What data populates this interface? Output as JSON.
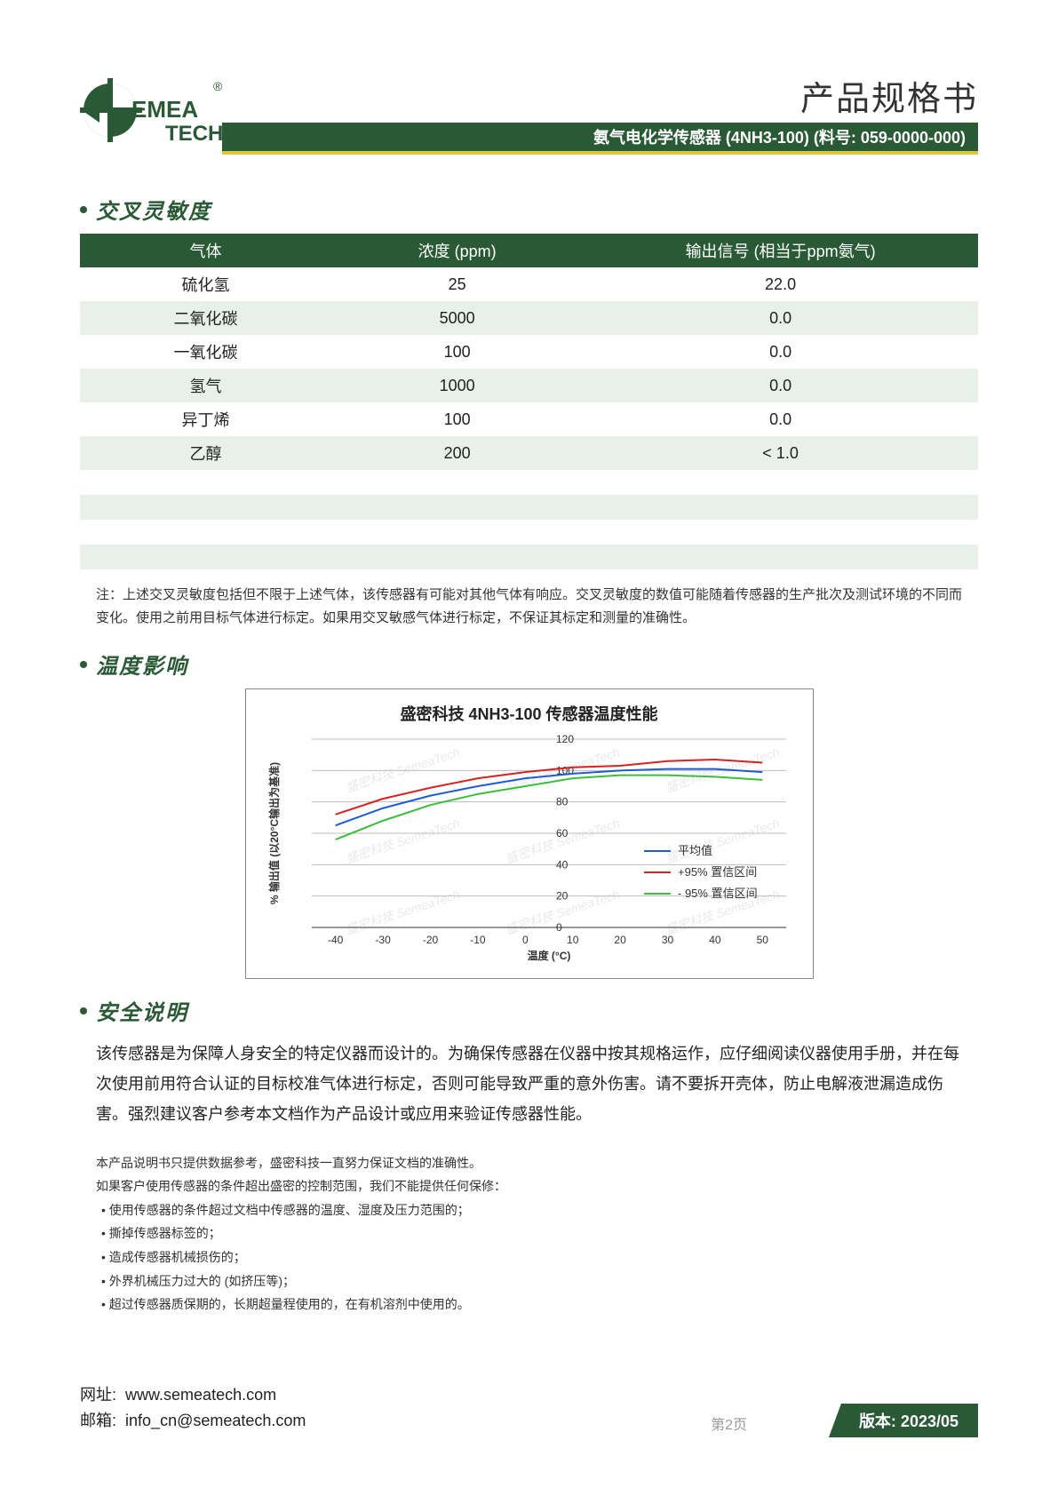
{
  "header": {
    "doc_title": "产品规格书",
    "banner": "氨气电化学传感器 (4NH3-100) (料号: 059-0000-000)",
    "logo_text_top": "EMEA",
    "logo_text_bottom": "TECH",
    "logo_reg": "®",
    "logo_color": "#2a5a35"
  },
  "sections": {
    "cross_sensitivity": {
      "title": "交叉灵敏度"
    },
    "temp_effect": {
      "title": "温度影响"
    },
    "safety": {
      "title": "安全说明"
    }
  },
  "xs_table": {
    "columns": [
      "气体",
      "浓度 (ppm)",
      "输出信号 (相当于ppm氨气)"
    ],
    "rows": [
      [
        "硫化氢",
        "25",
        "22.0"
      ],
      [
        "二氧化碳",
        "5000",
        "0.0"
      ],
      [
        "一氧化碳",
        "100",
        "0.0"
      ],
      [
        "氢气",
        "1000",
        "0.0"
      ],
      [
        "异丁烯",
        "100",
        "0.0"
      ],
      [
        "乙醇",
        "200",
        "< 1.0"
      ]
    ],
    "empty_rows": 4,
    "header_bg": "#2a5a35",
    "stripe_bg": "#e8f0e9"
  },
  "xs_note": "注：上述交叉灵敏度包括但不限于上述气体，该传感器有可能对其他气体有响应。交叉灵敏度的数值可能随着传感器的生产批次及测试环境的不同而变化。使用之前用目标气体进行标定。如果用交叉敏感气体进行标定，不保证其标定和测量的准确性。",
  "chart": {
    "title": "盛密科技 4NH3-100 传感器温度性能",
    "xlabel": "温度 (°C)",
    "ylabel": "% 输出值 (以20°C输出为基准)",
    "xlim": [
      -45,
      55
    ],
    "ylim": [
      0,
      120
    ],
    "xtick_step": 10,
    "ytick_step": 20,
    "xticks": [
      -40,
      -30,
      -20,
      -10,
      0,
      10,
      20,
      30,
      40,
      50
    ],
    "yticks": [
      0,
      20,
      40,
      60,
      80,
      100,
      120
    ],
    "grid_color": "#bdbdbd",
    "background_color": "#ffffff",
    "label_fontsize": 12,
    "title_fontsize": 16,
    "line_width": 2,
    "watermark_text": "盛密科技 SemeaTech",
    "watermark_color": "#eaeaea",
    "series": [
      {
        "name": "平均值",
        "color": "#1f5bd6",
        "x": [
          -40,
          -30,
          -20,
          -10,
          0,
          10,
          20,
          30,
          40,
          50
        ],
        "y": [
          65,
          76,
          84,
          90,
          95,
          98,
          100,
          101,
          101,
          99
        ]
      },
      {
        "name": "+95% 置信区间",
        "color": "#d62222",
        "x": [
          -40,
          -30,
          -20,
          -10,
          0,
          10,
          20,
          30,
          40,
          50
        ],
        "y": [
          72,
          82,
          89,
          95,
          99,
          102,
          103,
          106,
          107,
          105
        ]
      },
      {
        "name": "- 95% 置信区间",
        "color": "#3bbf3b",
        "x": [
          -40,
          -30,
          -20,
          -10,
          0,
          10,
          20,
          30,
          40,
          50
        ],
        "y": [
          56,
          68,
          78,
          85,
          90,
          95,
          97,
          97,
          96,
          94
        ]
      }
    ],
    "legend_position": "right-middle"
  },
  "safety_text": "该传感器是为保障人身安全的特定仪器而设计的。为确保传感器在仪器中按其规格运作，应仔细阅读仪器使用手册，并在每次使用前用符合认证的目标校准气体进行标定，否则可能导致严重的意外伤害。请不要拆开壳体，防止电解液泄漏造成伤害。强烈建议客户参考本文档作为产品设计或应用来验证传感器性能。",
  "disclaimer": {
    "intro1": "本产品说明书只提供数据参考，盛密科技一直努力保证文档的准确性。",
    "intro2": "如果客户使用传感器的条件超出盛密的控制范围，我们不能提供任何保修：",
    "items": [
      "使用传感器的条件超过文档中传感器的温度、湿度及压力范围的；",
      "撕掉传感器标签的；",
      "造成传感器机械损伤的；",
      "外界机械压力过大的 (如挤压等)；",
      "超过传感器质保期的，长期超量程使用的，在有机溶剂中使用的。"
    ]
  },
  "footer": {
    "url_label": "网址:",
    "url": "www.semeatech.com",
    "email_label": "邮箱:",
    "email": "info_cn@semeatech.com",
    "page_label": "第2页",
    "version_label": "版本: 2023/05"
  }
}
